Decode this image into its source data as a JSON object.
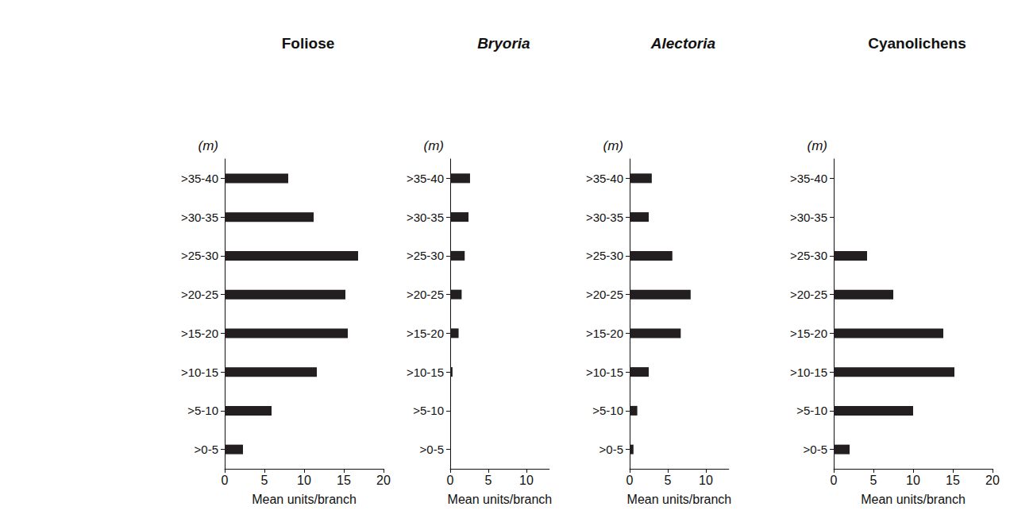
{
  "chart_data": [
    {
      "type": "bar",
      "orientation": "horizontal",
      "title": "Foliose",
      "xlabel": "Mean units/branch",
      "ylabel": "(m)",
      "categories": [
        ">0-5",
        ">5-10",
        ">10-15",
        ">15-20",
        ">20-25",
        ">25-30",
        ">30-35",
        ">35-40"
      ],
      "values": [
        2.3,
        5.9,
        11.6,
        15.5,
        15.2,
        16.8,
        11.2,
        8.0
      ],
      "color": "#231f20",
      "xlim": [
        0,
        20
      ],
      "xticks": [
        0,
        5,
        10,
        15,
        20
      ],
      "grid": false
    },
    {
      "type": "bar",
      "orientation": "horizontal",
      "title": "Bryoria",
      "xlabel": "Mean units/branch",
      "ylabel": "(m)",
      "categories": [
        ">0-5",
        ">5-10",
        ">10-15",
        ">15-20",
        ">20-25",
        ">25-30",
        ">30-35",
        ">35-40"
      ],
      "values": [
        0,
        0,
        0.3,
        1.1,
        1.5,
        1.9,
        2.4,
        2.6
      ],
      "color": "#231f20",
      "xlim": [
        0,
        13
      ],
      "xticks": [
        0,
        5,
        10
      ],
      "grid": false
    },
    {
      "type": "bar",
      "orientation": "horizontal",
      "title": "Alectoria",
      "xlabel": "Mean units/branch",
      "ylabel": "(m)",
      "categories": [
        ">0-5",
        ">5-10",
        ">10-15",
        ">15-20",
        ">20-25",
        ">25-30",
        ">30-35",
        ">35-40"
      ],
      "values": [
        0.5,
        1.0,
        2.5,
        6.7,
        8.0,
        5.6,
        2.5,
        2.9
      ],
      "color": "#231f20",
      "xlim": [
        0,
        13
      ],
      "xticks": [
        0,
        5,
        10
      ],
      "grid": false
    },
    {
      "type": "bar",
      "orientation": "horizontal",
      "title": "Cyanolichens",
      "xlabel": "Mean units/branch",
      "ylabel": "(m)",
      "categories": [
        ">0-5",
        ">5-10",
        ">10-15",
        ">15-20",
        ">20-25",
        ">25-30",
        ">30-35",
        ">35-40"
      ],
      "values": [
        2.0,
        10.0,
        15.2,
        13.8,
        7.5,
        4.2,
        0,
        0
      ],
      "color": "#231f20",
      "xlim": [
        0,
        20
      ],
      "xticks": [
        0,
        5,
        10,
        15,
        20
      ],
      "grid": false
    }
  ]
}
